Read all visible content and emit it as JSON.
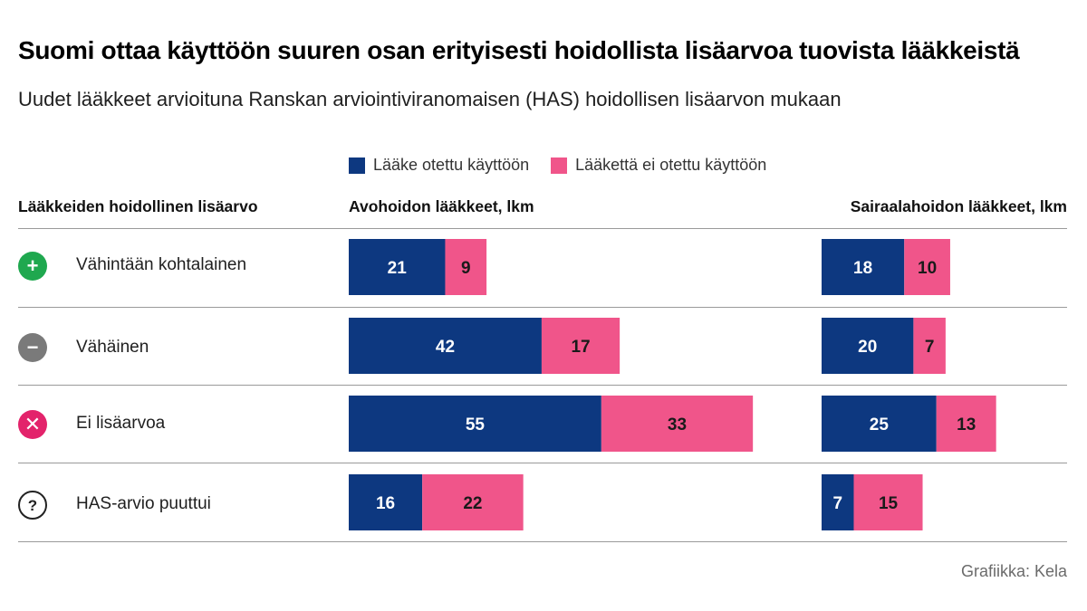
{
  "title": "Suomi ottaa käyttöön suuren osan erityisesti hoidollista lisäarvoa tuovista lääkkeistä",
  "subtitle": "Uudet lääkkeet arvioituna Ranskan arviointiviranomaisen (HAS) hoidollisen lisäarvon mukaan",
  "legend": {
    "adopted": "Lääke otettu käyttöön",
    "not_adopted": "Lääkettä ei otettu käyttöön"
  },
  "colors": {
    "adopted": "#0d3880",
    "not_adopted": "#f0558a",
    "icon_plus": "#1fa84f",
    "icon_minus": "#7a7a7a",
    "icon_cross": "#e3236b"
  },
  "column_headers": {
    "category": "Lääkkeiden hoidollinen lisäarvo",
    "outpatient": "Avohoidon lääkkeet, lkm",
    "hospital": "Sairaalahoidon lääkkeet, lkm"
  },
  "rows": [
    {
      "label": "Vähintään kohtalainen",
      "icon": "plus-icon",
      "icon_glyph": "+"
    },
    {
      "label": "Vähäinen",
      "icon": "minus-icon",
      "icon_glyph": "−"
    },
    {
      "label": "Ei lisäarvoa",
      "icon": "cross-icon",
      "icon_glyph": "✕"
    },
    {
      "label": "HAS-arvio puuttui",
      "icon": "question-icon",
      "icon_glyph": "?"
    }
  ],
  "credit": "Grafiikka: Kela",
  "chart_data": [
    {
      "type": "bar",
      "orientation": "horizontal",
      "stacked": true,
      "title": "Avohoidon lääkkeet, lkm",
      "categories": [
        "Vähintään kohtalainen",
        "Vähäinen",
        "Ei lisäarvoa",
        "HAS-arvio puuttui"
      ],
      "series": [
        {
          "name": "Lääke otettu käyttöön",
          "values": [
            21,
            42,
            55,
            16
          ]
        },
        {
          "name": "Lääkettä ei otettu käyttöön",
          "values": [
            9,
            17,
            33,
            22
          ]
        }
      ]
    },
    {
      "type": "bar",
      "orientation": "horizontal",
      "stacked": true,
      "title": "Sairaalahoidon lääkkeet, lkm",
      "categories": [
        "Vähintään kohtalainen",
        "Vähäinen",
        "Ei lisäarvoa",
        "HAS-arvio puuttui"
      ],
      "series": [
        {
          "name": "Lääke otettu käyttöön",
          "values": [
            18,
            20,
            25,
            7
          ]
        },
        {
          "name": "Lääkettä ei otettu käyttöön",
          "values": [
            10,
            7,
            13,
            15
          ]
        }
      ]
    }
  ]
}
